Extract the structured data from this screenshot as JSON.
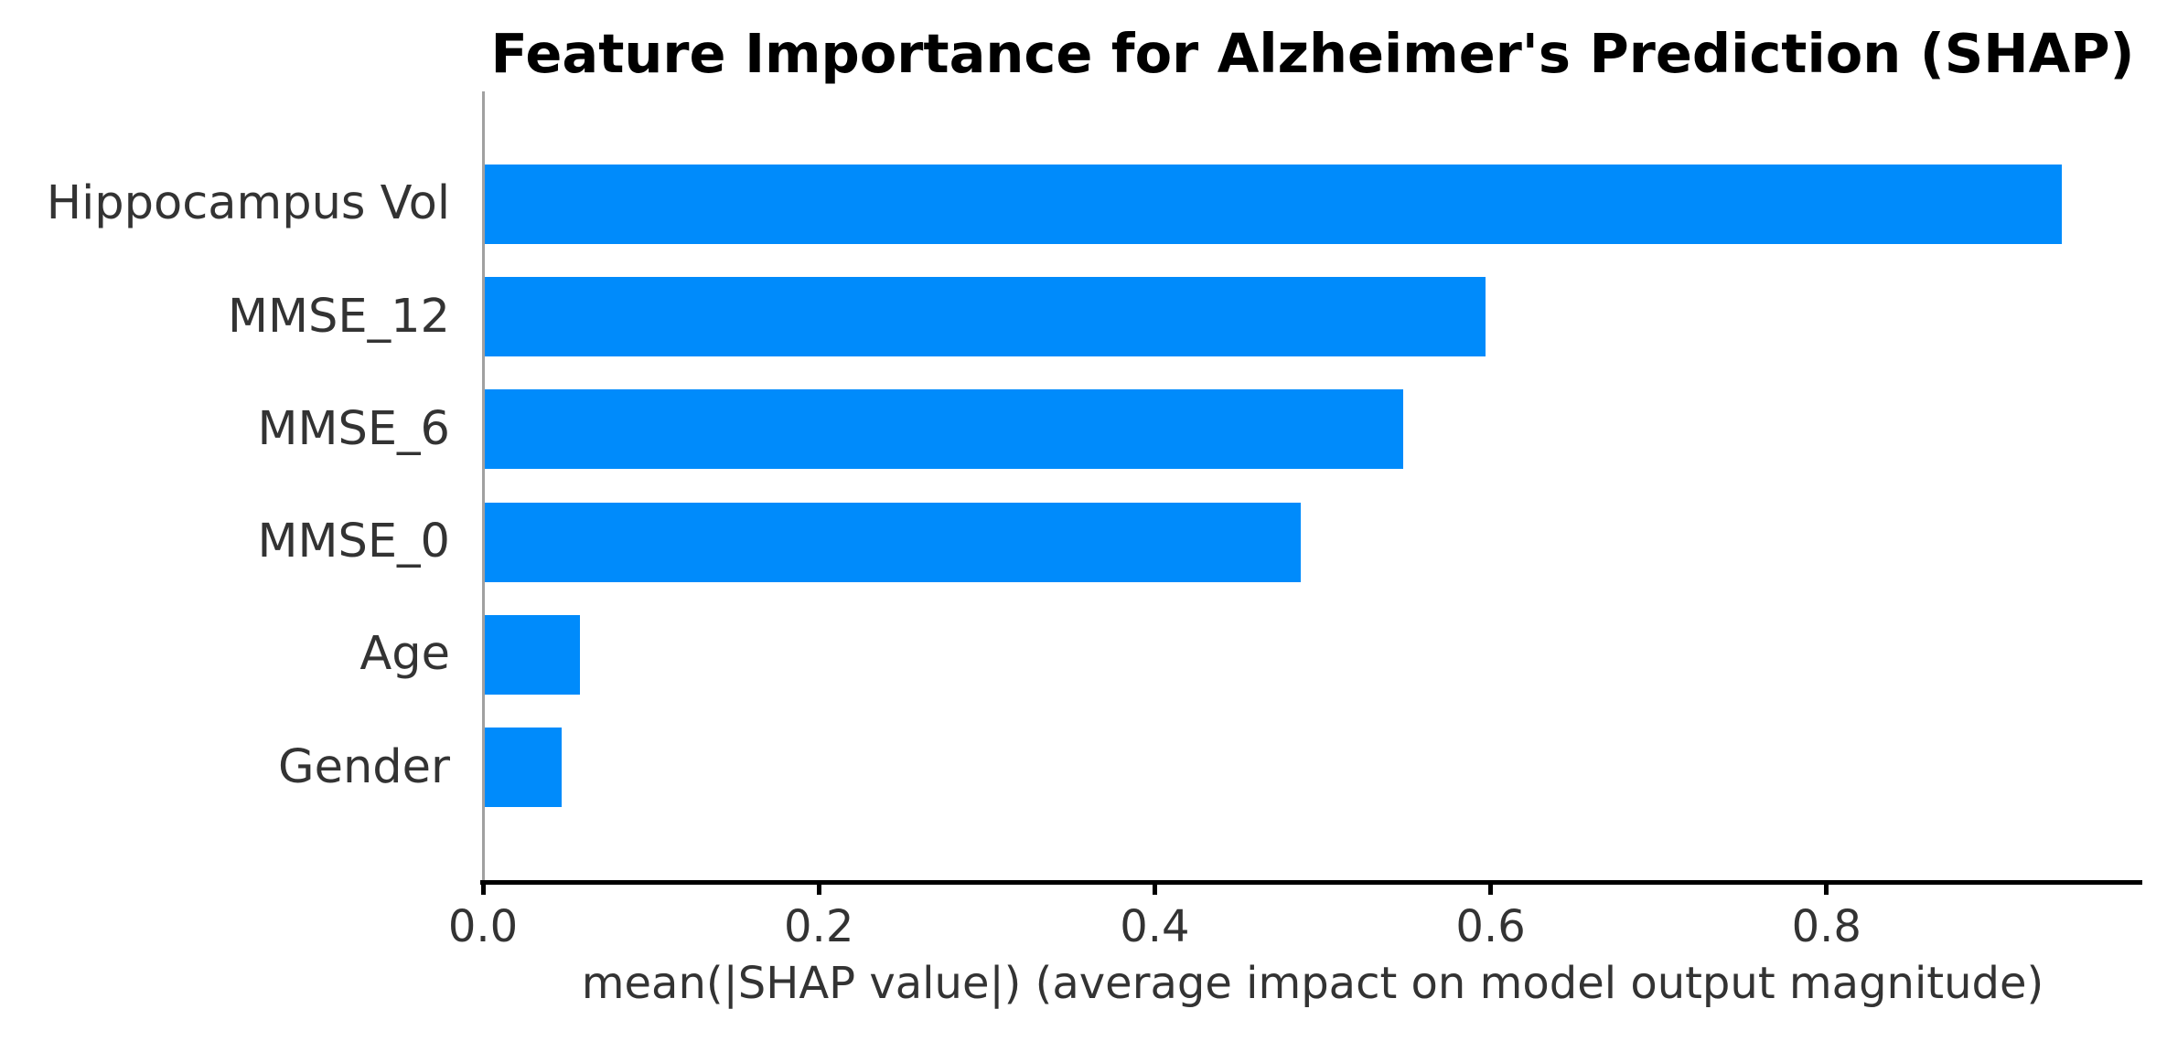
{
  "chart_data": {
    "type": "bar",
    "orientation": "horizontal",
    "title": "Feature Importance for Alzheimer's Prediction (SHAP)",
    "xlabel": "mean(|SHAP value|) (average impact on model output magnitude)",
    "ylabel": "",
    "categories": [
      "Hippocampus Vol",
      "MMSE_12",
      "MMSE_6",
      "MMSE_0",
      "Age",
      "Gender"
    ],
    "values": [
      0.94,
      0.597,
      0.548,
      0.487,
      0.058,
      0.047
    ],
    "xticks": [
      0.0,
      0.2,
      0.4,
      0.6,
      0.8
    ],
    "xtick_labels": [
      "0.0",
      "0.2",
      "0.4",
      "0.6",
      "0.8"
    ],
    "xlim": [
      0,
      0.988
    ],
    "grid": false,
    "legend": null,
    "bar_color": "#008bfb"
  },
  "colors": {
    "bar": "#008bfb",
    "title_text": "#000000",
    "tick_text": "#333333",
    "spine_left": "#a0a0a0",
    "spine_bottom": "#000000",
    "background": "#ffffff"
  }
}
